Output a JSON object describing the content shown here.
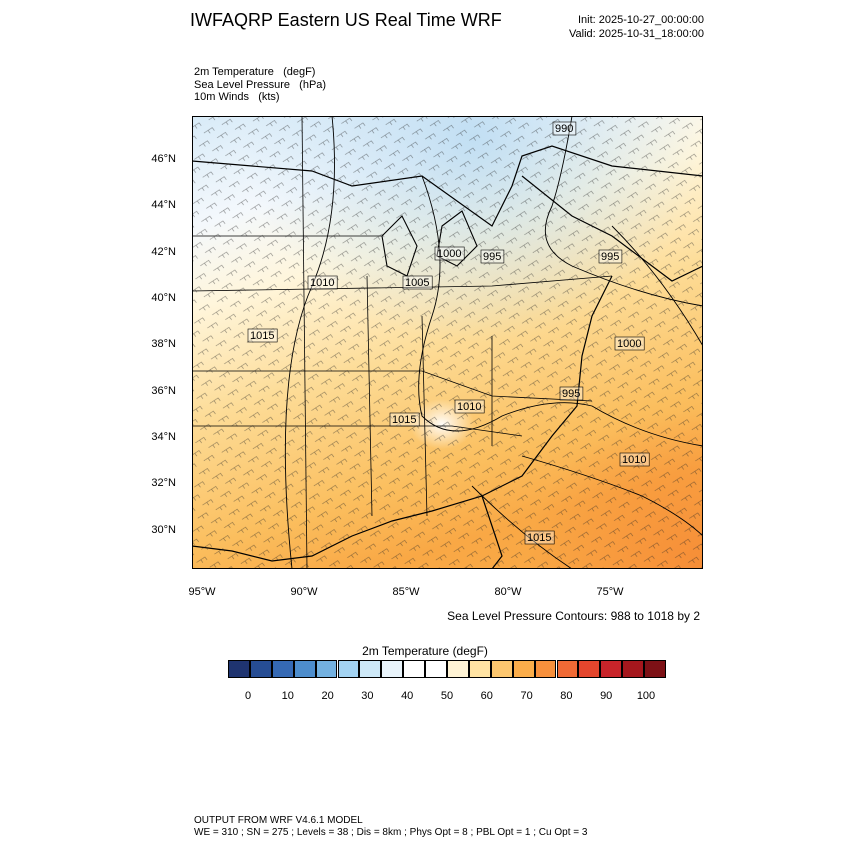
{
  "title": "IWFAQRP Eastern US Real Time WRF",
  "init": "Init: 2025-10-27_00:00:00",
  "valid": "Valid: 2025-10-31_18:00:00",
  "fields": [
    {
      "name": "2m Temperature",
      "units": "(degF)"
    },
    {
      "name": "Sea Level Pressure",
      "units": "(hPa)"
    },
    {
      "name": "10m Winds",
      "units": "(kts)"
    }
  ],
  "lat_labels": [
    "46°N",
    "44°N",
    "42°N",
    "40°N",
    "38°N",
    "36°N",
    "34°N",
    "32°N",
    "30°N"
  ],
  "lon_labels": [
    "95°W",
    "90°W",
    "85°W",
    "80°W",
    "75°W"
  ],
  "pressure_labels": [
    "990",
    "1000",
    "995",
    "995",
    "1010",
    "1005",
    "1015",
    "1000",
    "995",
    "1015",
    "1010",
    "1010",
    "1015"
  ],
  "contour_note": "Sea Level Pressure Contours: 988 to 1018 by 2",
  "colorbar": {
    "title": "2m Temperature  (degF)",
    "ticks": [
      "0",
      "10",
      "20",
      "30",
      "40",
      "50",
      "60",
      "70",
      "80",
      "90",
      "100"
    ],
    "colors": [
      "#1f3470",
      "#264d94",
      "#3569b4",
      "#4d8dcc",
      "#73b1e0",
      "#a3d3f2",
      "#cde8f7",
      "#e9f4fb",
      "#ffffff",
      "#ffffff",
      "#fff3d4",
      "#ffe3a3",
      "#fdc76f",
      "#fbad4a",
      "#f7903c",
      "#f06a35",
      "#e4462d",
      "#c8242a",
      "#a5171d",
      "#7d1116"
    ]
  },
  "footer": {
    "line1": "OUTPUT FROM WRF V4.6.1 MODEL",
    "line2": "WE = 310 ; SN = 275 ; Levels = 38 ; Dis = 8km ; Phys Opt = 8 ; PBL Opt = 1 ; Cu Opt = 3"
  }
}
